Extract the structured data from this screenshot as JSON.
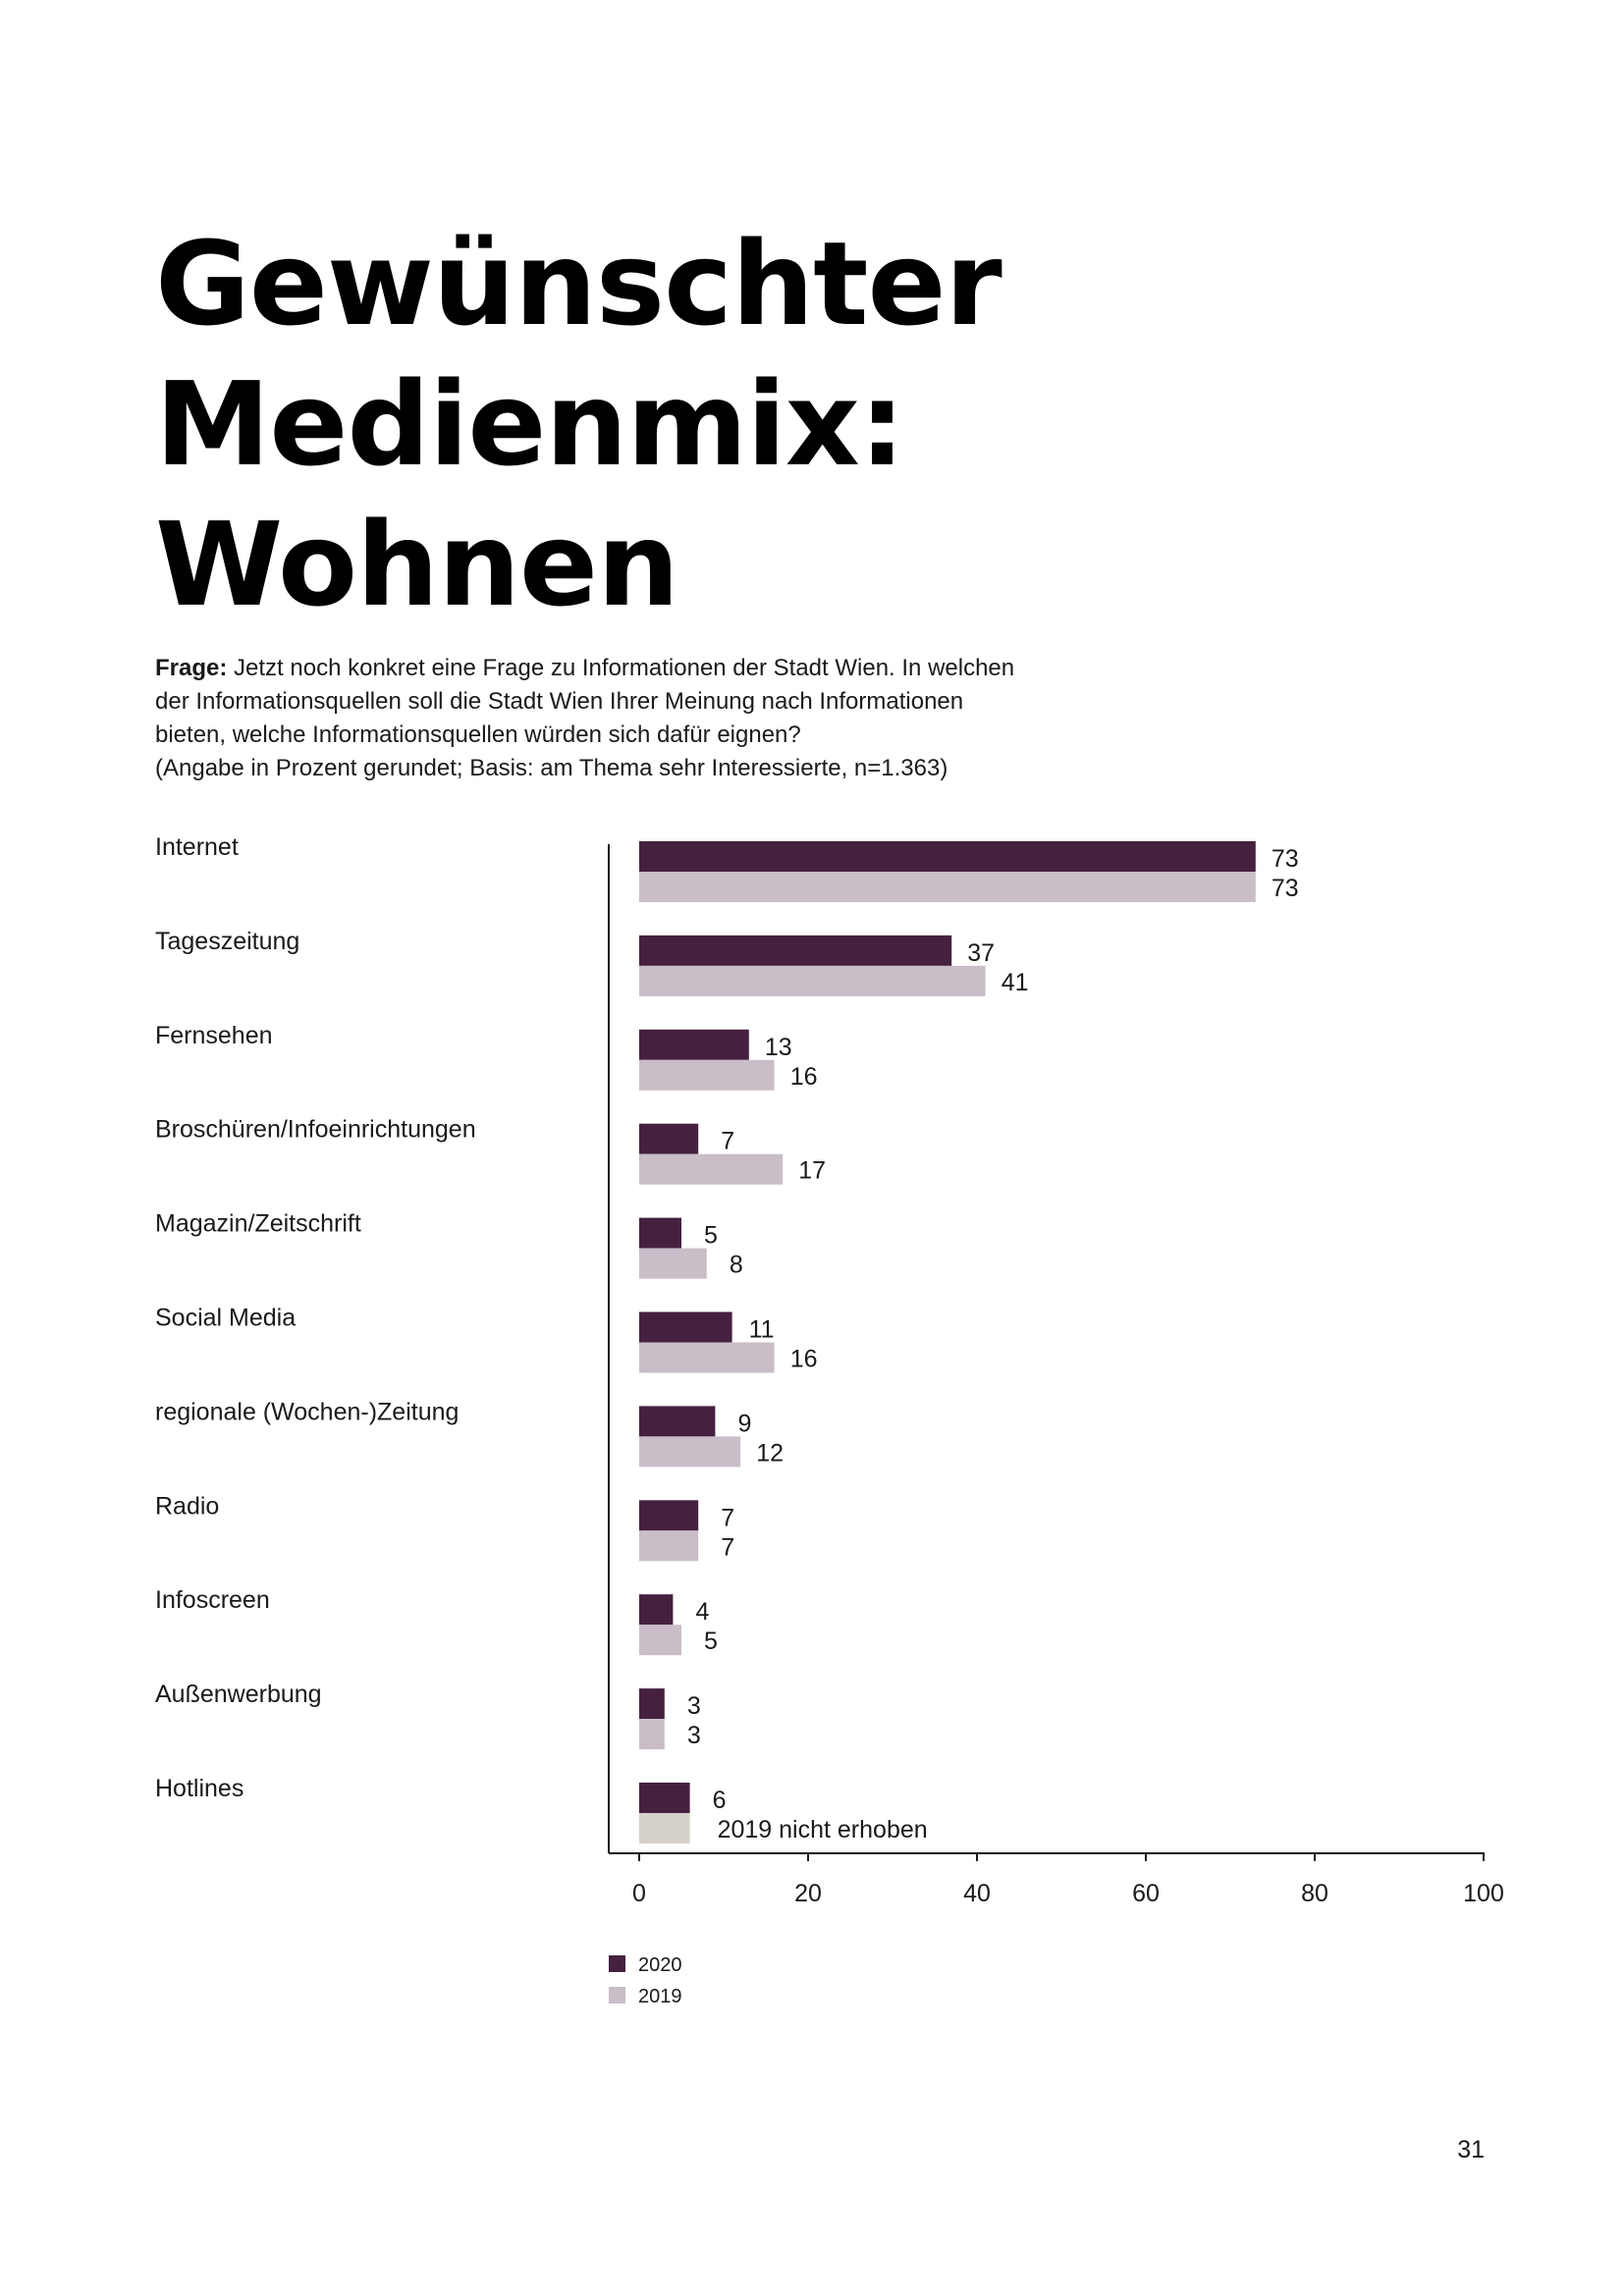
{
  "page": {
    "title_lines": [
      "Gewünschter",
      "Medienmix:",
      "Wohnen"
    ],
    "question_label": "Frage:",
    "question_lines": [
      " Jetzt noch konkret eine Frage zu Informationen der Stadt Wien. In welchen",
      "der Informationsquellen soll die Stadt Wien Ihrer Meinung nach Informationen",
      "bieten, welche Informationsquellen würden sich dafür eignen?",
      "(Angabe in Prozent gerundet; Basis: am Thema sehr Interessierte, n=1.363)"
    ],
    "page_number": "31"
  },
  "colors": {
    "series_2020": "#45213f",
    "series_2019": "#c9bdc8",
    "not_collected": "#d5d0c9",
    "axis": "#1a1a1a"
  },
  "chart_data": {
    "type": "bar",
    "orientation": "horizontal",
    "categories": [
      "Internet",
      "Tageszeitung",
      "Fernsehen",
      "Broschüren/Infoeinrichtungen",
      "Magazin/Zeitschrift",
      "Social Media",
      "regionale (Wochen-)Zeitung",
      "Radio",
      "Infoscreen",
      "Außenwerbung",
      "Hotlines"
    ],
    "series": [
      {
        "name": "2020",
        "values": [
          73,
          37,
          13,
          7,
          5,
          11,
          9,
          7,
          4,
          3,
          6
        ]
      },
      {
        "name": "2019",
        "values": [
          73,
          41,
          16,
          17,
          8,
          16,
          12,
          7,
          5,
          3,
          null
        ]
      }
    ],
    "not_collected_note": "2019 nicht erhoben",
    "xlim": [
      0,
      100
    ],
    "xticks": [
      0,
      20,
      40,
      60,
      80,
      100
    ],
    "legend": [
      "2020",
      "2019"
    ],
    "legend_position": "bottom-left"
  }
}
